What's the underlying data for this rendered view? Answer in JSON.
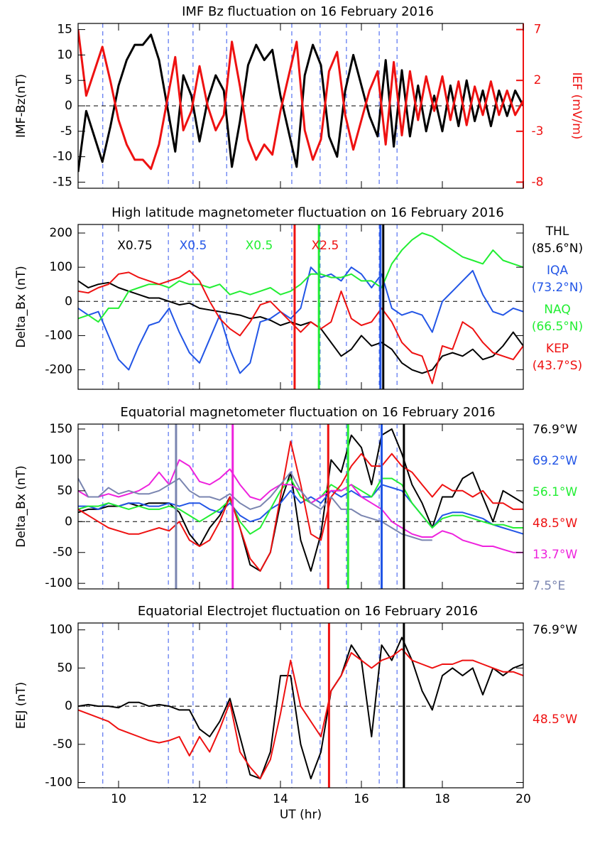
{
  "chart_data": [
    {
      "type": "line",
      "title": "IMF Bz fluctuation on 16 February 2016",
      "ylabel": "IMF-Bz(nT)",
      "y2label": "IEF (mV/m)",
      "y2color": "#ee1111",
      "xlim": [
        9,
        20
      ],
      "xticks": [
        10,
        12,
        14,
        16,
        18,
        20
      ],
      "xtick_labels": false,
      "ylim": [
        -16.2,
        16.2
      ],
      "yticks": [
        -15,
        -10,
        -5,
        0,
        5,
        10,
        15
      ],
      "y2lim": [
        -8.6,
        7.6
      ],
      "y2ticks": [
        -8,
        -3,
        2,
        7
      ],
      "reference_line": 0,
      "dashed_x": [
        9.61,
        11.23,
        11.84,
        12.67,
        14.28,
        14.98,
        15.63,
        16.44,
        16.88
      ],
      "x": [
        9,
        9.2,
        9.4,
        9.6,
        9.8,
        10,
        10.2,
        10.4,
        10.6,
        10.8,
        11,
        11.2,
        11.4,
        11.6,
        11.8,
        12,
        12.2,
        12.4,
        12.6,
        12.8,
        13,
        13.2,
        13.4,
        13.6,
        13.8,
        14,
        14.2,
        14.4,
        14.6,
        14.8,
        15,
        15.2,
        15.4,
        15.6,
        15.8,
        16,
        16.2,
        16.4,
        16.6,
        16.8,
        17,
        17.2,
        17.4,
        17.6,
        17.8,
        18,
        18.2,
        18.4,
        18.6,
        18.8,
        19,
        19.2,
        19.4,
        19.6,
        19.8,
        20
      ],
      "series": [
        {
          "color": "#000000",
          "axis": "y",
          "values": [
            -13,
            -1,
            -6,
            -11,
            -4,
            4,
            9,
            12,
            12,
            14,
            9,
            0,
            -9,
            6,
            2,
            -7,
            1,
            6,
            3,
            -12,
            -3,
            8,
            12,
            9,
            11,
            2,
            -5,
            -12,
            6,
            12,
            8,
            -6,
            -10,
            3,
            10,
            4,
            -2,
            -6,
            9,
            -8,
            7,
            -6,
            4,
            -5,
            2,
            -5,
            4,
            -4,
            5,
            -3,
            3,
            -4,
            3,
            -2,
            3,
            0
          ]
        },
        {
          "color": "#ee1111",
          "axis": "y2",
          "values": [
            7,
            0.5,
            2.9,
            5.3,
            1.9,
            -1.9,
            -4.3,
            -5.8,
            -5.8,
            -6.7,
            -4.3,
            0,
            4.3,
            -2.9,
            -1,
            3.4,
            -0.5,
            -2.9,
            -1.4,
            5.8,
            1.4,
            -3.8,
            -5.8,
            -4.3,
            -5.3,
            -1,
            2.4,
            5.8,
            -2.9,
            -5.8,
            -3.8,
            2.9,
            4.8,
            -1.4,
            -4.8,
            -1.9,
            1,
            2.9,
            -4.3,
            3.8,
            -3.4,
            2.9,
            -1.9,
            2.4,
            -1,
            2.4,
            -1.9,
            1.9,
            -2.4,
            1.4,
            -1.4,
            1.9,
            -1.4,
            1,
            -1.4,
            0
          ]
        }
      ]
    },
    {
      "type": "line",
      "title": "High latitude magnetometer fluctuation on 16 February 2016",
      "ylabel": "Delta_Bx (nT)",
      "xlim": [
        9,
        20
      ],
      "xticks": [
        10,
        12,
        14,
        16,
        18,
        20
      ],
      "xtick_labels": false,
      "ylim": [
        -257,
        225
      ],
      "yticks": [
        -200,
        -100,
        0,
        100,
        200
      ],
      "reference_line": 0,
      "dashed_x": [
        9.61,
        11.23,
        11.84,
        12.67,
        14.28,
        14.98,
        15.63,
        16.44,
        16.88
      ],
      "x": [
        9,
        9.25,
        9.5,
        9.75,
        10,
        10.25,
        10.5,
        10.75,
        11,
        11.25,
        11.5,
        11.75,
        12,
        12.25,
        12.5,
        12.75,
        13,
        13.25,
        13.5,
        13.75,
        14,
        14.25,
        14.5,
        14.75,
        15,
        15.25,
        15.5,
        15.75,
        16,
        16.25,
        16.5,
        16.75,
        17,
        17.25,
        17.5,
        17.75,
        18,
        18.25,
        18.5,
        18.75,
        19,
        19.25,
        19.5,
        19.75,
        20
      ],
      "series": [
        {
          "name": "THL",
          "location": "(85.6°N)",
          "scale_label": "X0.75",
          "color": "#000000",
          "marker": 16.54,
          "values": [
            60,
            40,
            50,
            55,
            40,
            30,
            20,
            10,
            10,
            0,
            -10,
            -5,
            -20,
            -25,
            -30,
            -35,
            -40,
            -50,
            -45,
            -55,
            -70,
            -60,
            -70,
            -60,
            -80,
            -120,
            -160,
            -140,
            -100,
            -130,
            -120,
            -140,
            -180,
            -200,
            -210,
            -200,
            -160,
            -150,
            -160,
            -140,
            -170,
            -160,
            -130,
            -90,
            -130
          ]
        },
        {
          "name": "IQA",
          "location": "(73.2°N)",
          "scale_label": "X0.5",
          "color": "#2255e6",
          "marker": 16.47,
          "values": [
            -20,
            -40,
            -30,
            -100,
            -170,
            -200,
            -130,
            -70,
            -60,
            -20,
            -90,
            -150,
            -180,
            -110,
            -40,
            -140,
            -210,
            -180,
            -60,
            -50,
            -30,
            -50,
            -20,
            100,
            70,
            80,
            60,
            100,
            80,
            40,
            80,
            -20,
            -40,
            -30,
            -40,
            -90,
            0,
            30,
            60,
            90,
            20,
            -30,
            -40,
            -20,
            -30
          ]
        },
        {
          "name": "NAQ",
          "location": "(66.5°N)",
          "scale_label": "X0.5",
          "color": "#22ee33",
          "marker": 14.95,
          "values": [
            -50,
            -40,
            -60,
            -20,
            -20,
            30,
            40,
            50,
            50,
            40,
            60,
            50,
            50,
            40,
            50,
            20,
            30,
            20,
            30,
            40,
            20,
            30,
            50,
            80,
            80,
            70,
            70,
            80,
            60,
            60,
            40,
            110,
            150,
            180,
            200,
            190,
            170,
            150,
            130,
            120,
            110,
            150,
            120,
            110,
            100
          ]
        },
        {
          "name": "KEP",
          "location": "(43.7°S)",
          "scale_label": "X2.5",
          "color": "#ee1111",
          "marker": 14.35,
          "values": [
            30,
            25,
            40,
            50,
            80,
            85,
            70,
            60,
            50,
            60,
            70,
            90,
            60,
            0,
            -50,
            -80,
            -100,
            -60,
            -10,
            0,
            -30,
            -60,
            -90,
            -60,
            -80,
            -60,
            30,
            -50,
            -70,
            -60,
            -20,
            -60,
            -120,
            -150,
            -160,
            -240,
            -130,
            -140,
            -60,
            -80,
            -120,
            -150,
            -160,
            -170,
            -130
          ]
        }
      ]
    },
    {
      "type": "line",
      "title": "Equatorial magnetometer fluctuation on 16 February 2016",
      "ylabel": "Delta_Bx (nT)",
      "xlim": [
        9,
        20
      ],
      "xticks": [
        10,
        12,
        14,
        16,
        18,
        20
      ],
      "xtick_labels": false,
      "ylim": [
        -109,
        158
      ],
      "yticks": [
        -100,
        -50,
        0,
        50,
        100,
        150
      ],
      "reference_line": 0,
      "dashed_x": [
        9.61,
        11.23,
        11.84,
        12.67,
        14.28,
        14.98,
        15.63,
        16.44,
        16.88
      ],
      "x": [
        9,
        9.25,
        9.5,
        9.75,
        10,
        10.25,
        10.5,
        10.75,
        11,
        11.25,
        11.5,
        11.75,
        12,
        12.25,
        12.5,
        12.75,
        13,
        13.25,
        13.5,
        13.75,
        14,
        14.25,
        14.5,
        14.75,
        15,
        15.25,
        15.5,
        15.75,
        16,
        16.25,
        16.5,
        16.75,
        17,
        17.25,
        17.5,
        17.75,
        18,
        18.25,
        18.5,
        18.75,
        19,
        19.25,
        19.5,
        19.75,
        20
      ],
      "series": [
        {
          "name": "76.9°W",
          "color": "#000000",
          "marker": 17.05,
          "values": [
            15,
            20,
            20,
            25,
            25,
            30,
            25,
            30,
            30,
            30,
            15,
            -20,
            -40,
            -10,
            10,
            40,
            -10,
            -70,
            -80,
            -50,
            30,
            80,
            -30,
            -80,
            -20,
            100,
            80,
            140,
            120,
            60,
            140,
            150,
            110,
            60,
            30,
            -10,
            40,
            40,
            70,
            80,
            40,
            0,
            50,
            40,
            30
          ]
        },
        {
          "name": "69.2°W",
          "color": "#2255e6",
          "marker": 16.5,
          "values": [
            25,
            25,
            20,
            30,
            25,
            30,
            30,
            25,
            25,
            30,
            25,
            30,
            30,
            20,
            15,
            30,
            10,
            0,
            5,
            20,
            30,
            50,
            30,
            40,
            30,
            50,
            40,
            50,
            40,
            40,
            60,
            55,
            50,
            30,
            10,
            -10,
            10,
            15,
            15,
            10,
            5,
            -5,
            -10,
            -15,
            -20
          ]
        },
        {
          "name": "56.1°W",
          "color": "#22ee33",
          "marker": 15.67,
          "values": [
            20,
            25,
            25,
            30,
            25,
            20,
            25,
            20,
            20,
            25,
            20,
            10,
            0,
            10,
            20,
            35,
            0,
            -20,
            -10,
            20,
            50,
            70,
            40,
            30,
            40,
            60,
            50,
            60,
            50,
            40,
            70,
            70,
            60,
            30,
            10,
            -10,
            5,
            10,
            10,
            5,
            0,
            -5,
            -5,
            -10,
            -10
          ]
        },
        {
          "name": "48.5°W",
          "color": "#ee1111",
          "marker": 15.18,
          "values": [
            20,
            10,
            0,
            -10,
            -15,
            -20,
            -20,
            -15,
            -10,
            -15,
            0,
            -30,
            -40,
            -30,
            0,
            40,
            -10,
            -60,
            -80,
            -50,
            40,
            130,
            60,
            -20,
            -30,
            40,
            60,
            90,
            110,
            90,
            90,
            110,
            90,
            80,
            60,
            40,
            60,
            50,
            50,
            40,
            50,
            30,
            30,
            20,
            20
          ]
        },
        {
          "name": "13.7°W",
          "color": "#ee22dd",
          "marker": 12.82,
          "values": [
            50,
            40,
            40,
            45,
            40,
            45,
            50,
            60,
            80,
            60,
            100,
            90,
            65,
            60,
            70,
            85,
            60,
            40,
            35,
            50,
            60,
            60,
            50,
            30,
            40,
            50,
            50,
            60,
            40,
            30,
            20,
            0,
            -10,
            -20,
            -25,
            -25,
            -15,
            -20,
            -30,
            -35,
            -40,
            -40,
            -45,
            -50,
            -50
          ]
        },
        {
          "name": "7.5°E",
          "color": "#7a85b0",
          "marker": 11.42,
          "values": [
            70,
            40,
            40,
            55,
            45,
            50,
            45,
            45,
            50,
            60,
            70,
            50,
            40,
            40,
            35,
            45,
            30,
            20,
            25,
            40,
            60,
            80,
            50,
            30,
            20,
            40,
            20,
            20,
            10,
            5,
            0,
            -10,
            -20,
            -25,
            -30,
            -30,
            null,
            null,
            null,
            null,
            null,
            null,
            null,
            null,
            null
          ]
        }
      ]
    },
    {
      "type": "line",
      "title": "Equatorial Electrojet fluctuation on 16 February 2016",
      "ylabel": "EEJ (nT)",
      "xlabel": "UT (hr)",
      "xlim": [
        9,
        20
      ],
      "xticks": [
        10,
        12,
        14,
        16,
        18,
        20
      ],
      "xtick_labels": true,
      "ylim": [
        -107,
        109
      ],
      "yticks": [
        -100,
        -50,
        0,
        50,
        100
      ],
      "reference_line": 0,
      "dashed_x": [
        9.61,
        11.23,
        11.84,
        12.67,
        14.28,
        14.98,
        15.63,
        16.44,
        16.88
      ],
      "x": [
        9,
        9.25,
        9.5,
        9.75,
        10,
        10.25,
        10.5,
        10.75,
        11,
        11.25,
        11.5,
        11.75,
        12,
        12.25,
        12.5,
        12.75,
        13,
        13.25,
        13.5,
        13.75,
        14,
        14.25,
        14.5,
        14.75,
        15,
        15.25,
        15.5,
        15.75,
        16,
        16.25,
        16.5,
        16.75,
        17,
        17.25,
        17.5,
        17.75,
        18,
        18.25,
        18.5,
        18.75,
        19,
        19.25,
        19.5,
        19.75,
        20
      ],
      "series": [
        {
          "name": "76.9°W",
          "color": "#000000",
          "marker": 17.05,
          "values": [
            0,
            2,
            0,
            0,
            -2,
            5,
            5,
            0,
            2,
            0,
            -5,
            -5,
            -30,
            -40,
            -20,
            10,
            -40,
            -90,
            -95,
            -60,
            40,
            40,
            -50,
            -95,
            -60,
            20,
            40,
            80,
            60,
            -40,
            80,
            60,
            90,
            60,
            20,
            -5,
            40,
            50,
            40,
            50,
            15,
            50,
            40,
            50,
            55
          ]
        },
        {
          "name": "48.5°W",
          "color": "#ee1111",
          "marker": 15.2,
          "values": [
            -5,
            -10,
            -15,
            -20,
            -30,
            -35,
            -40,
            -45,
            -48,
            -45,
            -40,
            -65,
            -40,
            -60,
            -30,
            5,
            -60,
            -80,
            -95,
            -70,
            -10,
            60,
            0,
            -20,
            -40,
            20,
            40,
            70,
            60,
            50,
            60,
            65,
            75,
            60,
            55,
            50,
            55,
            55,
            60,
            60,
            55,
            50,
            45,
            45,
            40
          ]
        }
      ]
    }
  ]
}
